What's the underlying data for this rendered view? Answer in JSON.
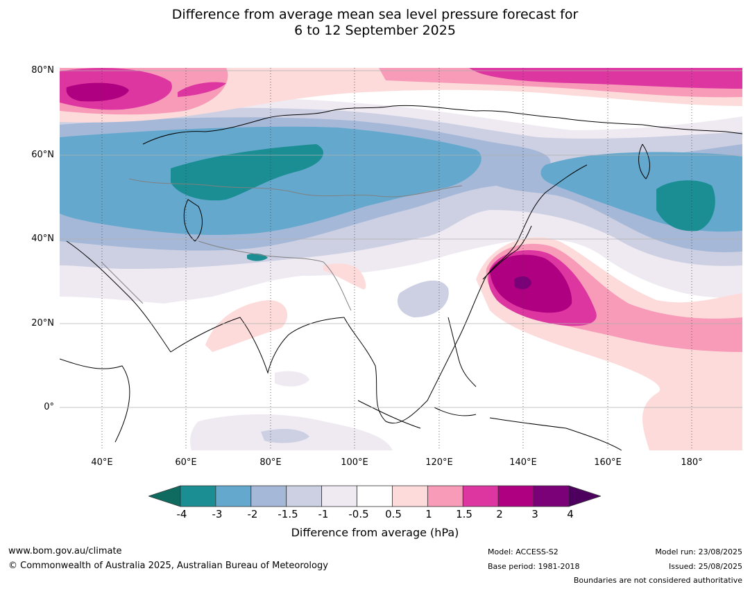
{
  "title": {
    "line1": "Difference from average mean sea level pressure forecast for",
    "line2": "6 to 12 September 2025"
  },
  "map": {
    "lat_labels": [
      "80°N",
      "60°N",
      "40°N",
      "20°N",
      "0°"
    ],
    "lon_labels": [
      "40°E",
      "60°E",
      "80°E",
      "100°E",
      "120°E",
      "140°E",
      "160°E",
      "180°"
    ],
    "region": "Asia / North-West Pacific"
  },
  "colorbar": {
    "title": "Difference from average (hPa)",
    "ticks": [
      "-4",
      "-3",
      "-2",
      "-1.5",
      "-1",
      "-0.5",
      "0.5",
      "1",
      "1.5",
      "2",
      "3",
      "4"
    ],
    "colors": [
      "#0f6a60",
      "#1b8e93",
      "#64a8ce",
      "#a6b8d8",
      "#cdd0e3",
      "#efeaf2",
      "#ffffff",
      "#fddbdb",
      "#f79bb8",
      "#de36a0",
      "#ae0080",
      "#7a0177",
      "#4d005e"
    ]
  },
  "footer": {
    "website": "www.bom.gov.au/climate",
    "copyright": "© Commonwealth of Australia 2025, Australian Bureau of Meteorology",
    "model": "Model: ACCESS-S2",
    "base_period": "Base period: 1981-2018",
    "model_run": "Model run: 23/08/2025",
    "issued": "Issued: 25/08/2025",
    "boundaries": "Boundaries are not considered authoritative"
  }
}
